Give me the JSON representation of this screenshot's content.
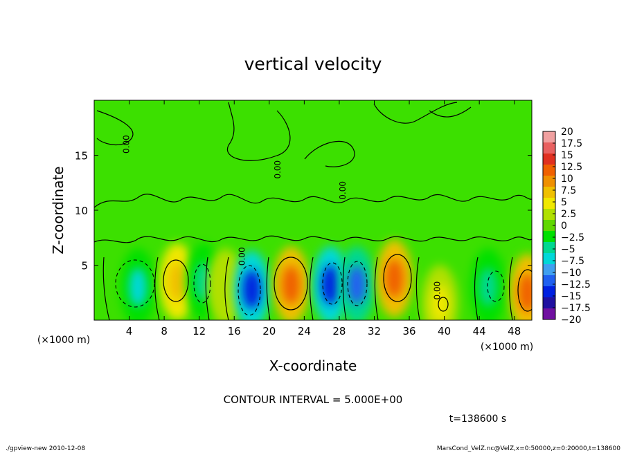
{
  "chart_data": {
    "type": "heatmap",
    "title": "vertical velocity",
    "xlabel": "X-coordinate",
    "ylabel": "Z-coordinate",
    "x_unit_left": "(×1000 m)",
    "x_unit_right": "(×1000 m)",
    "xlim": [
      0,
      50
    ],
    "ylim": [
      0,
      20
    ],
    "x_ticks": [
      4,
      8,
      12,
      16,
      20,
      24,
      28,
      32,
      36,
      40,
      44,
      48
    ],
    "y_ticks": [
      5,
      10,
      15
    ],
    "contour_interval_text": "CONTOUR INTERVAL = 5.000E+00",
    "time_text": "t=138600 s",
    "contour_labels": [
      {
        "text": "0.00",
        "x": 4,
        "z": 16
      },
      {
        "text": "0.00",
        "x": 21.3,
        "z": 13.7
      },
      {
        "text": "0.00",
        "x": 28.7,
        "z": 11.8
      },
      {
        "text": "0.00",
        "x": 17.2,
        "z": 5.8
      },
      {
        "text": "0.00",
        "x": 39.5,
        "z": 2.7
      }
    ],
    "colorbar": {
      "labels": [
        "20",
        "17.5",
        "15",
        "12.5",
        "10",
        "7.5",
        "5",
        "2.5",
        "0",
        "−2.5",
        "−5",
        "−7.5",
        "−10",
        "−12.5",
        "−15",
        "−17.5",
        "−20"
      ],
      "colors": [
        "#f0a0a0",
        "#e86060",
        "#e03020",
        "#f06000",
        "#f09000",
        "#f0c000",
        "#f0e800",
        "#b0e000",
        "#60d800",
        "#00e000",
        "#00d890",
        "#00d8d8",
        "#40a0f0",
        "#2060f0",
        "#0020e0",
        "#2010a0",
        "#7010a0"
      ],
      "tick_values": [
        20,
        17.5,
        15,
        12.5,
        10,
        7.5,
        5,
        2.5,
        0,
        -2.5,
        -5,
        -7.5,
        -10,
        -12.5,
        -15,
        -17.5,
        -20
      ]
    },
    "features": [
      {
        "sign": "neg",
        "x": 5,
        "z": 3,
        "peak": -7.5
      },
      {
        "sign": "pos",
        "x": 9.5,
        "z": 3.5,
        "peak": 7.5
      },
      {
        "sign": "neg",
        "x": 12.5,
        "z": 3.5,
        "peak": -5
      },
      {
        "sign": "pos",
        "x": 15,
        "z": 3,
        "peak": 2.5
      },
      {
        "sign": "neg",
        "x": 18,
        "z": 2.8,
        "peak": -15
      },
      {
        "sign": "pos",
        "x": 22.5,
        "z": 3.2,
        "peak": 12.5
      },
      {
        "sign": "neg",
        "x": 27,
        "z": 3.2,
        "peak": -15
      },
      {
        "sign": "neg",
        "x": 30,
        "z": 3.2,
        "peak": -12.5
      },
      {
        "sign": "pos",
        "x": 34.3,
        "z": 3.8,
        "peak": 12.5
      },
      {
        "sign": "pos",
        "x": 39.5,
        "z": 1.5,
        "peak": 5
      },
      {
        "sign": "neg",
        "x": 45,
        "z": 3,
        "peak": -5
      },
      {
        "sign": "pos",
        "x": 49.5,
        "z": 2.5,
        "peak": 12.5
      }
    ]
  },
  "footer": {
    "left": "./gpview-new  2010-12-08",
    "right": "MarsCond_VelZ.nc@VelZ,x=0:50000,z=0:20000,t=138600"
  }
}
